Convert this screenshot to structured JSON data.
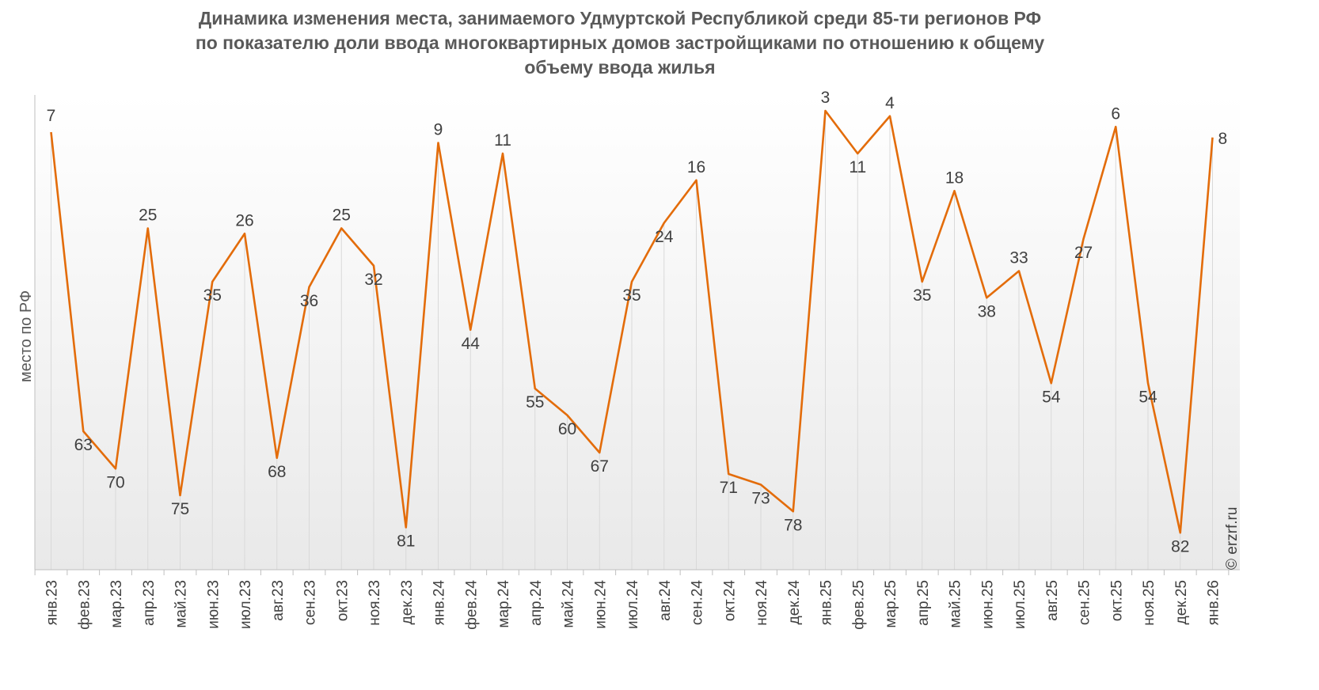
{
  "chart_data": {
    "type": "line",
    "title_lines": [
      "Динамика изменения места, занимаемого Удмуртской Республикой среди 85-ти регионов РФ",
      "по показателю доли ввода многоквартирных домов застройщиками по отношению к общему",
      "объему ввода жилья"
    ],
    "ylabel": "место по РФ",
    "y_inverted": true,
    "ylim": [
      1,
      85
    ],
    "grid": "vertical",
    "line_color": "#E36C0A",
    "categories": [
      "янв.23",
      "фев.23",
      "мар.23",
      "апр.23",
      "май.23",
      "июн.23",
      "июл.23",
      "авг.23",
      "сен.23",
      "окт.23",
      "ноя.23",
      "дек.23",
      "янв.24",
      "фев.24",
      "мар.24",
      "апр.24",
      "май.24",
      "июн.24",
      "июл.24",
      "авг.24",
      "сен.24",
      "окт.24",
      "ноя.24",
      "дек.24",
      "янв.25",
      "фев.25",
      "мар.25",
      "апр.25",
      "май.25",
      "июн.25",
      "июл.25",
      "авг.25",
      "сен.25",
      "окт.25",
      "ноя.25",
      "дек.25",
      "янв.26"
    ],
    "values": [
      7,
      63,
      70,
      25,
      75,
      35,
      26,
      68,
      36,
      25,
      32,
      81,
      9,
      44,
      11,
      55,
      60,
      67,
      35,
      24,
      16,
      71,
      73,
      78,
      3,
      11,
      4,
      35,
      18,
      38,
      33,
      54,
      27,
      6,
      54,
      82,
      8
    ]
  },
  "copyright": "© erzrf.ru"
}
